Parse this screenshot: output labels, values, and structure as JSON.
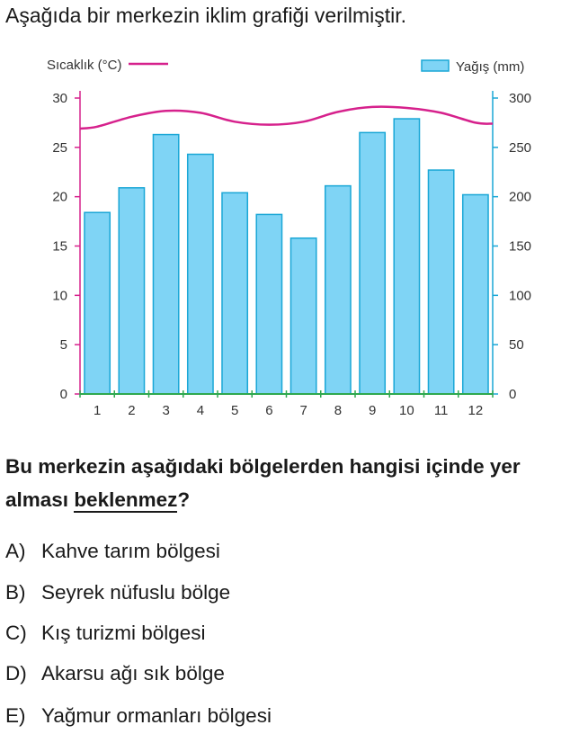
{
  "intro_text": "Aşağıda bir merkezin iklim grafiği verilmiştir.",
  "chart_data": {
    "type": "bar+line",
    "categories": [
      "1",
      "2",
      "3",
      "4",
      "5",
      "6",
      "7",
      "8",
      "9",
      "10",
      "11",
      "12"
    ],
    "precipitation": {
      "name": "Yağış (mm)",
      "axis": "right",
      "values": [
        184,
        209,
        263,
        243,
        204,
        182,
        158,
        211,
        265,
        279,
        227,
        202
      ],
      "ylim": [
        0,
        300
      ],
      "ticks": [
        "0",
        "50",
        "100",
        "150",
        "200",
        "250",
        "300"
      ],
      "color": "#7fd4f5",
      "edge_color": "#1aa7d6"
    },
    "temperature": {
      "name": "Sıcaklık (°C)",
      "axis": "left",
      "values": [
        27.1,
        28.1,
        28.7,
        28.5,
        27.6,
        27.3,
        27.6,
        28.6,
        29.1,
        29.0,
        28.5,
        27.5
      ],
      "ylim": [
        0,
        30
      ],
      "ticks": [
        "0",
        "5",
        "10",
        "15",
        "20",
        "25",
        "30"
      ],
      "color": "#d6218c"
    },
    "axis_color": "#1aa7d6",
    "legend": {
      "temperature_label": "Sıcaklık (°C)",
      "precipitation_label": "Yağış (mm)"
    }
  },
  "question": {
    "text_before": "Bu merkezin aşağıdaki bölgelerden hangisi içinde yer alması ",
    "emphasis": "beklenmez",
    "text_after": "?"
  },
  "options": [
    {
      "letter": "A)",
      "text": "Kahve tarım bölgesi"
    },
    {
      "letter": "B)",
      "text": "Seyrek nüfuslu bölge"
    },
    {
      "letter": "C)",
      "text": "Kış turizmi bölgesi"
    },
    {
      "letter": "D)",
      "text": "Akarsu ağı sık bölge"
    },
    {
      "letter": "E)",
      "text": "Yağmur ormanları bölgesi"
    }
  ]
}
